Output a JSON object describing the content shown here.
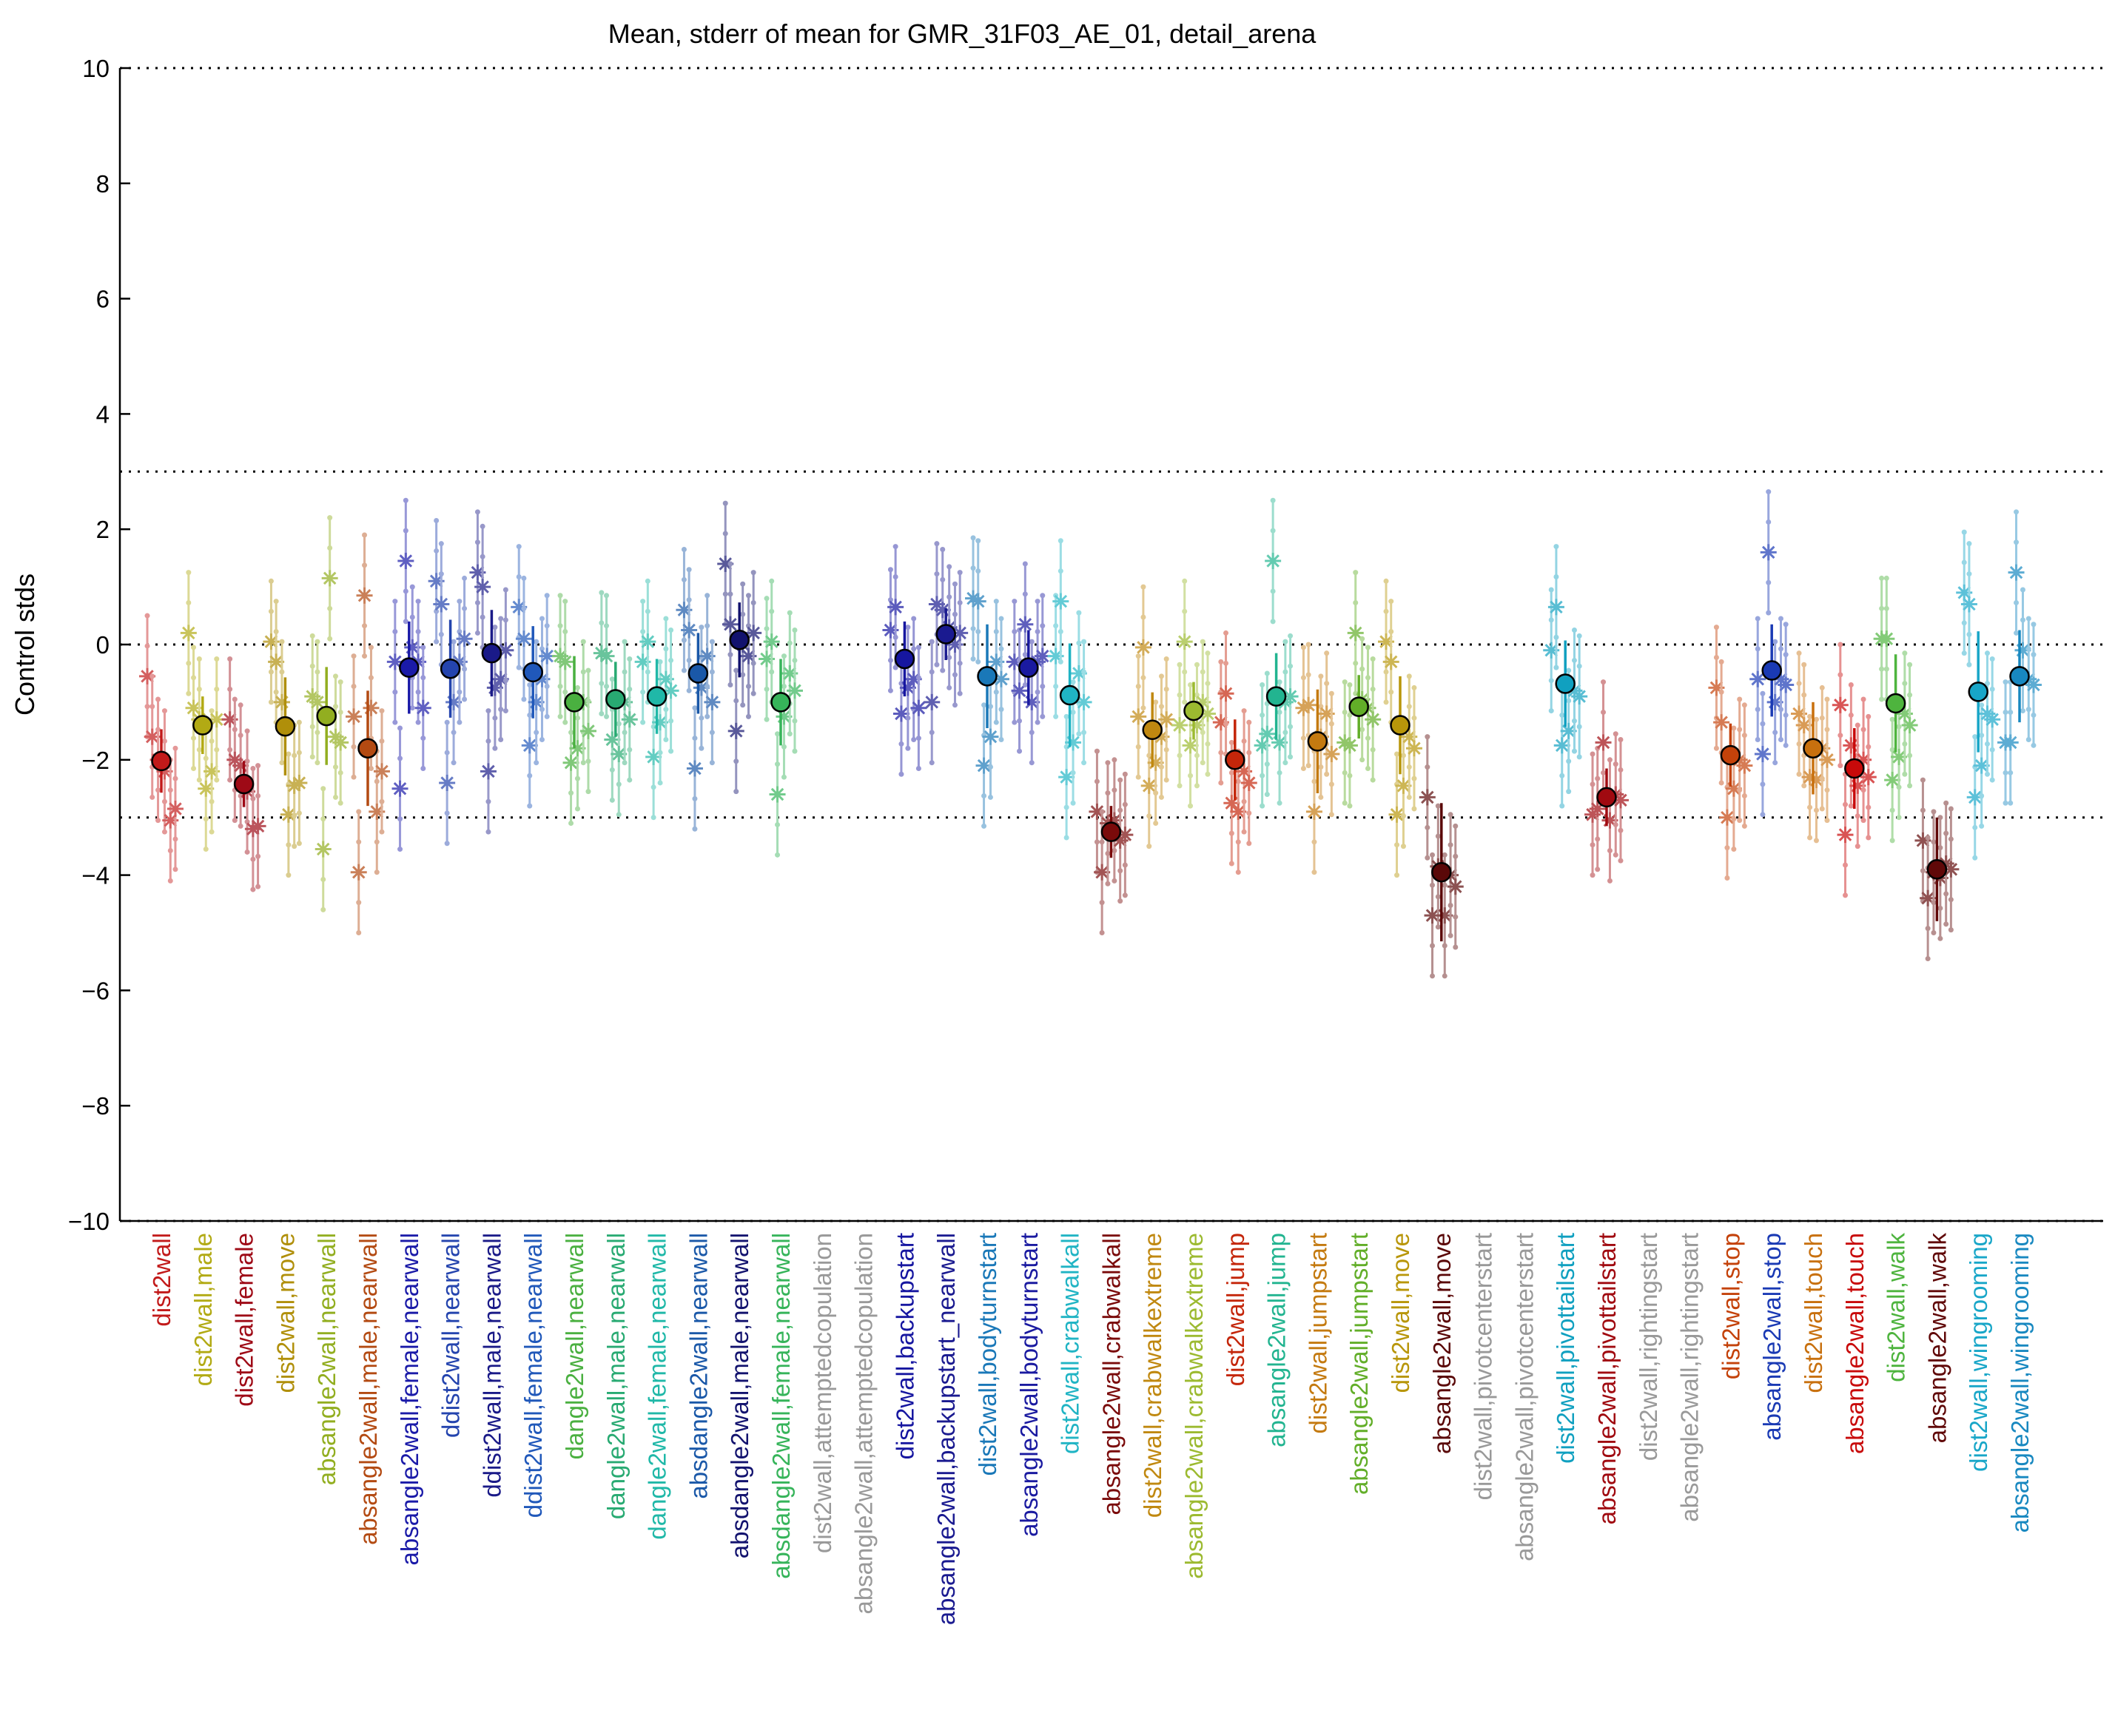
{
  "chart_data": {
    "type": "scatter",
    "title": "Mean, stderr of mean for GMR_31F03_AE_01, detail_arena",
    "xlabel": "",
    "ylabel": "Control stds",
    "ylim": [
      -10,
      10
    ],
    "yticks": [
      -10,
      -8,
      -6,
      -4,
      -2,
      0,
      2,
      4,
      6,
      8,
      10
    ],
    "ytick_labels": [
      "−10",
      "−8",
      "−6",
      "−4",
      "−2",
      "0",
      "2",
      "4",
      "6",
      "8",
      "10"
    ],
    "reference_lines": [
      -10,
      -3,
      0,
      3,
      10
    ],
    "grid": false,
    "categories": [
      "dist2wall",
      "dist2wall,male",
      "dist2wall,female",
      "dist2wall,move",
      "absangle2wall,nearwall",
      "absangle2wall,male,nearwall",
      "absangle2wall,female,nearwall",
      "ddist2wall,nearwall",
      "ddist2wall,male,nearwall",
      "ddist2wall,female,nearwall",
      "dangle2wall,nearwall",
      "dangle2wall,male,nearwall",
      "dangle2wall,female,nearwall",
      "absdangle2wall,nearwall",
      "absdangle2wall,male,nearwall",
      "absdangle2wall,female,nearwall",
      "dist2wall,attemptedcopulation",
      "absangle2wall,attemptedcopulation",
      "dist2wall,backupstart",
      "absangle2wall,backupstart_nearwall",
      "dist2wall,bodyturnstart",
      "absangle2wall,bodyturnstart",
      "dist2wall,crabwalkall",
      "absangle2wall,crabwalkall",
      "dist2wall,crabwalkextreme",
      "absangle2wall,crabwalkextreme",
      "dist2wall,jump",
      "absangle2wall,jump",
      "dist2wall,jumpstart",
      "absangle2wall,jumpstart",
      "dist2wall,move",
      "absangle2wall,move",
      "dist2wall,pivotcenterstart",
      "absangle2wall,pivotcenterstart",
      "dist2wall,pivottailstart",
      "absangle2wall,pivottailstart",
      "dist2wall,rightingstart",
      "absangle2wall,rightingstart",
      "dist2wall,stop",
      "absangle2wall,stop",
      "dist2wall,touch",
      "absangle2wall,touch",
      "dist2wall,walk",
      "absangle2wall,walk",
      "dist2wall,wingrooming",
      "absangle2wall,wingrooming"
    ],
    "colors": [
      "#c21a1a",
      "#b2aa14",
      "#9e0a16",
      "#b08f0a",
      "#92ae20",
      "#b34a12",
      "#1a1aa8",
      "#2444ae",
      "#1a1a88",
      "#2058ba",
      "#4ab040",
      "#28aa72",
      "#20b8a8",
      "#1a58a8",
      "#12126e",
      "#36b45a",
      "#999999",
      "#999999",
      "#1616a0",
      "#1a1a90",
      "#1a78b8",
      "#1a1aa0",
      "#20b4c4",
      "#7a0a0a",
      "#c08810",
      "#9cba30",
      "#c4260a",
      "#22b490",
      "#c47a10",
      "#62ae28",
      "#b8960a",
      "#5a0808",
      "#999999",
      "#999999",
      "#10a0c0",
      "#a00a10",
      "#999999",
      "#999999",
      "#c4420a",
      "#1a3ab4",
      "#c8700e",
      "#c80a0a",
      "#4eb43e",
      "#600808",
      "#18a6c8",
      "#1888c0"
    ],
    "series": [
      {
        "values": [
          -2.02,
          -1.4,
          -2.42,
          -1.42,
          -1.24,
          -1.8,
          -0.4,
          -0.42,
          -0.15,
          -0.48,
          -1.0,
          -0.95,
          -0.9,
          -0.5,
          0.08,
          -1.0,
          null,
          null,
          -0.25,
          0.18,
          -0.55,
          -0.4,
          -0.88,
          -3.25,
          -1.48,
          -1.15,
          -2.0,
          -0.9,
          -1.68,
          -1.08,
          -1.4,
          -3.95,
          null,
          null,
          -0.68,
          -2.65,
          null,
          null,
          -1.92,
          -0.45,
          -1.8,
          -2.15,
          -1.02,
          -3.9,
          -0.82,
          -0.55
        ],
        "err": [
          0.55,
          0.5,
          0.4,
          0.85,
          0.85,
          1.0,
          0.8,
          0.85,
          0.75,
          0.8,
          0.8,
          0.65,
          0.65,
          0.7,
          0.65,
          0.75,
          null,
          null,
          0.65,
          0.45,
          0.9,
          0.65,
          0.9,
          0.45,
          0.65,
          0.5,
          0.7,
          0.75,
          0.9,
          0.55,
          0.85,
          1.2,
          null,
          null,
          0.75,
          0.5,
          null,
          null,
          0.55,
          0.8,
          0.8,
          0.7,
          0.85,
          0.9,
          1.05,
          0.8
        ]
      }
    ],
    "replicate_offsets": [
      -0.34,
      -0.22,
      -0.08,
      0.08,
      0.22,
      0.34
    ],
    "replicates": [
      [
        -0.55,
        -1.6,
        -2.0,
        -2.2,
        -3.05,
        -2.85
      ],
      [
        0.2,
        -1.1,
        -1.3,
        -2.5,
        -2.2,
        -1.3
      ],
      [
        -1.3,
        -2.0,
        -2.1,
        -2.55,
        -3.2,
        -3.15
      ],
      [
        0.05,
        -0.3,
        -1.0,
        -2.95,
        -2.45,
        -2.4
      ],
      [
        -0.9,
        -1.0,
        -3.55,
        1.15,
        -1.6,
        -1.7
      ],
      [
        -1.25,
        -3.95,
        0.85,
        -1.1,
        -2.9,
        -2.2
      ],
      [
        -0.3,
        -2.5,
        1.45,
        -0.05,
        -0.3,
        -1.1
      ],
      [
        1.1,
        0.7,
        -2.4,
        -1.0,
        -0.3,
        0.1
      ],
      [
        1.25,
        1.0,
        -2.2,
        -0.75,
        -0.6,
        -0.1
      ],
      [
        0.65,
        0.1,
        -1.75,
        -1.0,
        -0.6,
        -0.2
      ],
      [
        -0.2,
        -0.3,
        -2.05,
        -1.8,
        -1.0,
        -1.5
      ],
      [
        -0.15,
        -0.2,
        -1.65,
        -1.9,
        -1.0,
        -1.3
      ],
      [
        -0.3,
        0.05,
        -1.95,
        -1.35,
        -0.6,
        -0.8
      ],
      [
        0.6,
        0.25,
        -2.15,
        -0.75,
        -0.2,
        -1.0
      ],
      [
        1.4,
        0.35,
        -1.5,
        0.0,
        -0.2,
        0.2
      ],
      [
        -0.25,
        0.05,
        -2.6,
        -1.25,
        -0.5,
        -0.8
      ],
      [
        null,
        null,
        null,
        null,
        null,
        null
      ],
      [
        null,
        null,
        null,
        null,
        null,
        null
      ],
      [
        0.25,
        0.65,
        -1.2,
        -0.75,
        -0.6,
        -1.1
      ],
      [
        -1.0,
        0.7,
        0.6,
        0.3,
        0.0,
        0.2
      ],
      [
        0.8,
        0.75,
        -2.1,
        -1.6,
        -0.3,
        -0.6
      ],
      [
        -0.3,
        -0.8,
        0.35,
        -1.0,
        -0.3,
        -0.2
      ],
      [
        -0.2,
        0.75,
        -2.3,
        -1.7,
        -0.5,
        -1.0
      ],
      [
        -2.9,
        -3.95,
        -3.1,
        -3.05,
        -3.4,
        -3.3
      ],
      [
        -1.25,
        -0.05,
        -2.45,
        -2.05,
        -1.6,
        -1.3
      ],
      [
        -1.4,
        0.05,
        -1.75,
        -1.4,
        -1.0,
        -1.2
      ],
      [
        -1.35,
        -0.85,
        -2.75,
        -2.9,
        -2.2,
        -2.4
      ],
      [
        -1.75,
        -1.55,
        1.45,
        -1.7,
        -1.0,
        -0.9
      ],
      [
        -1.1,
        -1.05,
        -2.9,
        -1.6,
        -1.2,
        -1.9
      ],
      [
        -1.7,
        -1.75,
        0.2,
        -0.95,
        -1.1,
        -1.3
      ],
      [
        0.05,
        -0.3,
        -2.95,
        -2.45,
        -1.6,
        -1.8
      ],
      [
        -2.65,
        -4.7,
        -3.85,
        -4.7,
        -4.0,
        -4.2
      ],
      [
        null,
        null,
        null,
        null,
        null,
        null
      ],
      [
        null,
        null,
        null,
        null,
        null,
        null
      ],
      [
        -0.1,
        0.65,
        -1.75,
        -1.5,
        -0.8,
        -0.9
      ],
      [
        -2.95,
        -2.85,
        -1.7,
        -3.05,
        -2.6,
        -2.7
      ],
      [
        null,
        null,
        null,
        null,
        null,
        null
      ],
      [
        null,
        null,
        null,
        null,
        null,
        null
      ],
      [
        -0.75,
        -1.35,
        -3.0,
        -2.5,
        -2.0,
        -2.1
      ],
      [
        -0.6,
        -1.9,
        1.6,
        -1.0,
        -0.6,
        -0.7
      ],
      [
        -1.2,
        -1.4,
        -2.3,
        -2.35,
        -1.8,
        -2.0
      ],
      [
        -1.05,
        -3.3,
        -1.75,
        -2.45,
        -2.0,
        -2.3
      ],
      [
        0.1,
        0.1,
        -2.35,
        -1.95,
        -1.2,
        -1.4
      ],
      [
        -3.4,
        -4.4,
        -3.95,
        -4.05,
        -3.8,
        -3.9
      ],
      [
        0.9,
        0.7,
        -2.65,
        -2.1,
        -1.2,
        -1.3
      ],
      [
        -1.7,
        -1.7,
        1.25,
        -0.1,
        -0.6,
        -0.7
      ]
    ]
  }
}
